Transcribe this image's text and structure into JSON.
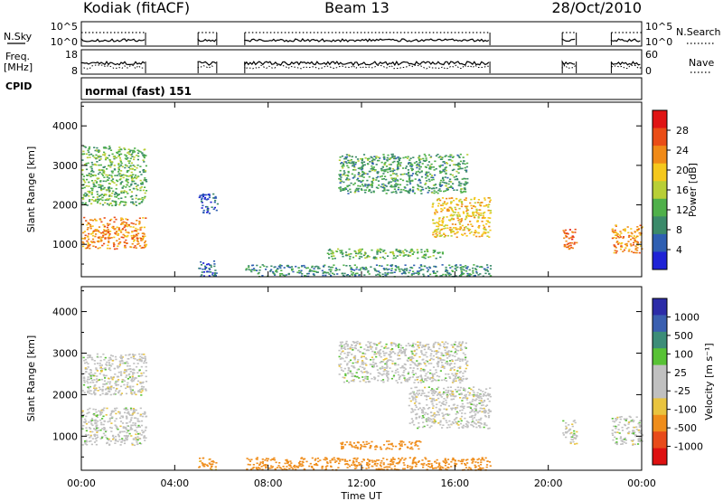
{
  "header": {
    "station": "Kodiak (fitACF)",
    "beam": "Beam 13",
    "date": "28/Oct/2010"
  },
  "panel_labels": {
    "nsky": "N.Sky",
    "nsearch": "N.Search",
    "freq_line1": "Freq.",
    "freq_line2": "[MHz]",
    "nave": "Nave",
    "cpid": "CPID",
    "cpid_value": "normal (fast) 151"
  },
  "scale_labels": {
    "noise_top_left": "10^5",
    "noise_bottom_left": "10^0",
    "noise_top_right": "10^5",
    "noise_bottom_right": "10^0",
    "freq_top": "18",
    "freq_bottom": "8",
    "nave_top": "60",
    "nave_bottom": "0"
  },
  "colors": {
    "power_scale": [
      "#1f23d6",
      "#2e5fb2",
      "#3b8a6a",
      "#4fb04a",
      "#b8cf36",
      "#f5c81c",
      "#f08a17",
      "#ea4d16",
      "#e01414"
    ],
    "velocity_scale": [
      "#2c2ca8",
      "#3a5fb0",
      "#3c8d78",
      "#58c235",
      "#c0c0c0",
      "#c0c0c0",
      "#e9c43f",
      "#ef8d1b",
      "#e84b1a",
      "#de1111"
    ]
  },
  "chart_data": [
    {
      "type": "heatmap",
      "title": "",
      "xlabel": "Time UT",
      "ylabel": "Slant Range [km]",
      "x_ticks": [
        "00:00",
        "04:00",
        "08:00",
        "12:00",
        "16:00",
        "20:00",
        "00:00"
      ],
      "xlim_hours": [
        0,
        24
      ],
      "y_ticks": [
        1000,
        2000,
        3000,
        4000
      ],
      "ylim": [
        180,
        4600
      ],
      "colorbar": {
        "label": "Power [dB]",
        "ticks": [
          "4",
          "8",
          "12",
          "16",
          "20",
          "24",
          "28"
        ],
        "range": [
          0,
          32
        ]
      },
      "data_intervals_hours": [
        [
          0.0,
          2.75
        ],
        [
          5.0,
          5.8
        ],
        [
          7.0,
          17.5
        ],
        [
          20.6,
          21.2
        ],
        [
          22.7,
          24.0
        ]
      ],
      "echo_regions": [
        {
          "t": [
            0.0,
            2.75
          ],
          "r": [
            900,
            1700
          ],
          "value": 26
        },
        {
          "t": [
            0.0,
            2.75
          ],
          "r": [
            2000,
            3500
          ],
          "value": 14
        },
        {
          "t": [
            5.0,
            5.8
          ],
          "r": [
            200,
            600
          ],
          "value": 6
        },
        {
          "t": [
            5.0,
            5.8
          ],
          "r": [
            1800,
            2300
          ],
          "value": 5
        },
        {
          "t": [
            7.0,
            17.5
          ],
          "r": [
            200,
            500
          ],
          "value": 10
        },
        {
          "t": [
            10.5,
            15.5
          ],
          "r": [
            650,
            900
          ],
          "value": 14
        },
        {
          "t": [
            11.0,
            16.5
          ],
          "r": [
            2300,
            3300
          ],
          "value": 12
        },
        {
          "t": [
            15.0,
            17.5
          ],
          "r": [
            1200,
            2200
          ],
          "value": 22
        },
        {
          "t": [
            20.6,
            21.2
          ],
          "r": [
            800,
            1400
          ],
          "value": 28
        },
        {
          "t": [
            22.7,
            24.0
          ],
          "r": [
            800,
            1500
          ],
          "value": 26
        }
      ]
    },
    {
      "type": "heatmap",
      "title": "",
      "xlabel": "Time UT",
      "ylabel": "Slant Range [km]",
      "x_ticks": [
        "00:00",
        "04:00",
        "08:00",
        "12:00",
        "16:00",
        "20:00",
        "00:00"
      ],
      "xlim_hours": [
        0,
        24
      ],
      "y_ticks": [
        1000,
        2000,
        3000,
        4000
      ],
      "ylim": [
        180,
        4600
      ],
      "colorbar": {
        "label": "Velocity [m s⁻¹]",
        "ticks": [
          "1000",
          "500",
          "100",
          "25",
          "-25",
          "-100",
          "-500",
          "-1000"
        ]
      },
      "echo_regions": [
        {
          "t": [
            0.0,
            2.75
          ],
          "r": [
            800,
            1700
          ],
          "value": 0
        },
        {
          "t": [
            0.0,
            2.75
          ],
          "r": [
            2000,
            3000
          ],
          "value": 0
        },
        {
          "t": [
            5.0,
            5.8
          ],
          "r": [
            200,
            500
          ],
          "value": -80
        },
        {
          "t": [
            7.0,
            17.5
          ],
          "r": [
            200,
            500
          ],
          "value": -100
        },
        {
          "t": [
            11.0,
            14.5
          ],
          "r": [
            700,
            900
          ],
          "value": -200
        },
        {
          "t": [
            11.0,
            16.5
          ],
          "r": [
            2300,
            3300
          ],
          "value": 0
        },
        {
          "t": [
            14.0,
            17.5
          ],
          "r": [
            1200,
            2200
          ],
          "value": 0
        },
        {
          "t": [
            20.6,
            21.2
          ],
          "r": [
            800,
            1400
          ],
          "value": 0
        },
        {
          "t": [
            22.7,
            24.0
          ],
          "r": [
            800,
            1500
          ],
          "value": 0
        }
      ]
    }
  ]
}
